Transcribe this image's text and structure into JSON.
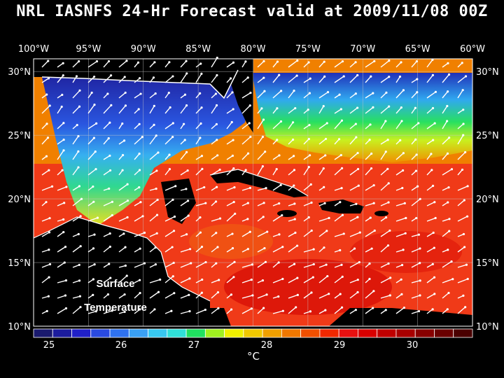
{
  "title": "NRL IASNFS  24-Hr Forecast valid at 2009/11/08 00Z",
  "map": {
    "lon_labels": [
      "100°W",
      "95°W",
      "90°W",
      "85°W",
      "80°W",
      "75°W",
      "70°W",
      "65°W",
      "60°W"
    ],
    "lat_labels": [
      "30°N",
      "25°N",
      "20°N",
      "15°N",
      "10°N"
    ],
    "lon_range": [
      -100,
      -60
    ],
    "lat_range": [
      10,
      31
    ],
    "overlay_label_line1": "Surface",
    "overlay_label_line2": "Temperature",
    "grid": true
  },
  "colorbar": {
    "tick_labels": [
      "25",
      "26",
      "27",
      "28",
      "29",
      "30"
    ],
    "unit": "°C",
    "colors": [
      "#1a1a6e",
      "#1c1c9e",
      "#2020c8",
      "#2a4ae0",
      "#2f72f0",
      "#3aa0f4",
      "#38c8f0",
      "#30e0d8",
      "#20e060",
      "#a0f020",
      "#f0f000",
      "#f0c800",
      "#f0a000",
      "#f07800",
      "#f05000",
      "#f02800",
      "#e81010",
      "#d80000",
      "#c00000",
      "#a80000",
      "#880000",
      "#6a0000",
      "#4a0000"
    ]
  }
}
